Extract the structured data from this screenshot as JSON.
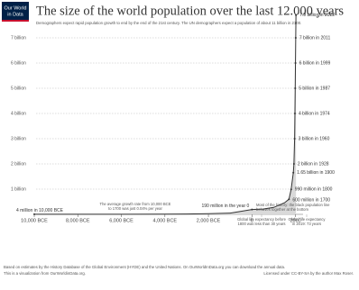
{
  "logo": [
    "Our World",
    "in Data"
  ],
  "chart_data": {
    "type": "area",
    "title": "The size of the world population over the last 12.000 years",
    "subtitle": "Demographers expect rapid population growth to end by the end of the 21st century. The UN demographers expect a population of about 11 billion in 2100.",
    "x": [
      -10000,
      -8000,
      -6000,
      -4000,
      -3000,
      -2000,
      -1000,
      0,
      500,
      1000,
      1500,
      1700,
      1800,
      1900,
      1928,
      1960,
      1974,
      1987,
      1999,
      2011,
      2022
    ],
    "values": [
      0.004,
      0.005,
      0.006,
      0.007,
      0.014,
      0.027,
      0.05,
      0.19,
      0.21,
      0.275,
      0.46,
      0.6,
      0.99,
      1.65,
      2,
      3,
      4,
      5,
      6,
      7,
      7.9
    ],
    "value_labels": [
      "4 million in 10,000 BCE",
      null,
      null,
      null,
      null,
      null,
      null,
      "190 million in the year 0",
      null,
      null,
      null,
      "600 million in 1700",
      "990 million in 1800",
      "1.65 billion in 1900",
      "2 billion in 1928",
      "3 billion in 1960",
      "4 billion in 1974",
      "5 billion in 1987",
      "6 billion in 1999",
      "7 billion in 2011",
      "7.9 billion in 2022"
    ],
    "color": "#333333",
    "fill": "#d9d9d9",
    "xlim": [
      -10000,
      2100
    ],
    "ylim": [
      0,
      8
    ],
    "xticks": [
      {
        "value": -10000,
        "label": "10,000 BCE"
      },
      {
        "value": -8000,
        "label": "8,000 BCE"
      },
      {
        "value": -6000,
        "label": "6,000 BCE"
      },
      {
        "value": -4000,
        "label": "4,000 BCE"
      },
      {
        "value": -2000,
        "label": "2,000 BCE"
      },
      0,
      2000
    ],
    "yticks": [
      {
        "value": 1,
        "label": "1 billion"
      },
      {
        "value": 2,
        "label": "2 billion"
      },
      {
        "value": 3,
        "label": "3 billion"
      },
      {
        "value": 4,
        "label": "4 billion"
      },
      {
        "value": 5,
        "label": "5 billion"
      },
      {
        "value": 6,
        "label": "6 billion"
      },
      {
        "value": 7,
        "label": "7 billion"
      }
    ],
    "grid": true,
    "annotations": [
      [
        "The average growth rate from 10,000 BCE",
        "to 1700 was just 0.04% per year"
      ],
      [
        "Most of the history: the black population line",
        "behaves together at the bottom"
      ],
      [
        "Global life expectancy before",
        "1800 was less than 30 years"
      ],
      [
        "Global life expectancy",
        "in 2019: 73 years"
      ]
    ],
    "source": "Based on estimates by the History Database of the Global Environment (HYDE) and the United Nations. On OurWorldInData.org you can download the annual data.",
    "note": "This is a visualization from OurWorldinData.org.",
    "license": "Licensed under CC-BY-SA by the author Max Roser."
  }
}
